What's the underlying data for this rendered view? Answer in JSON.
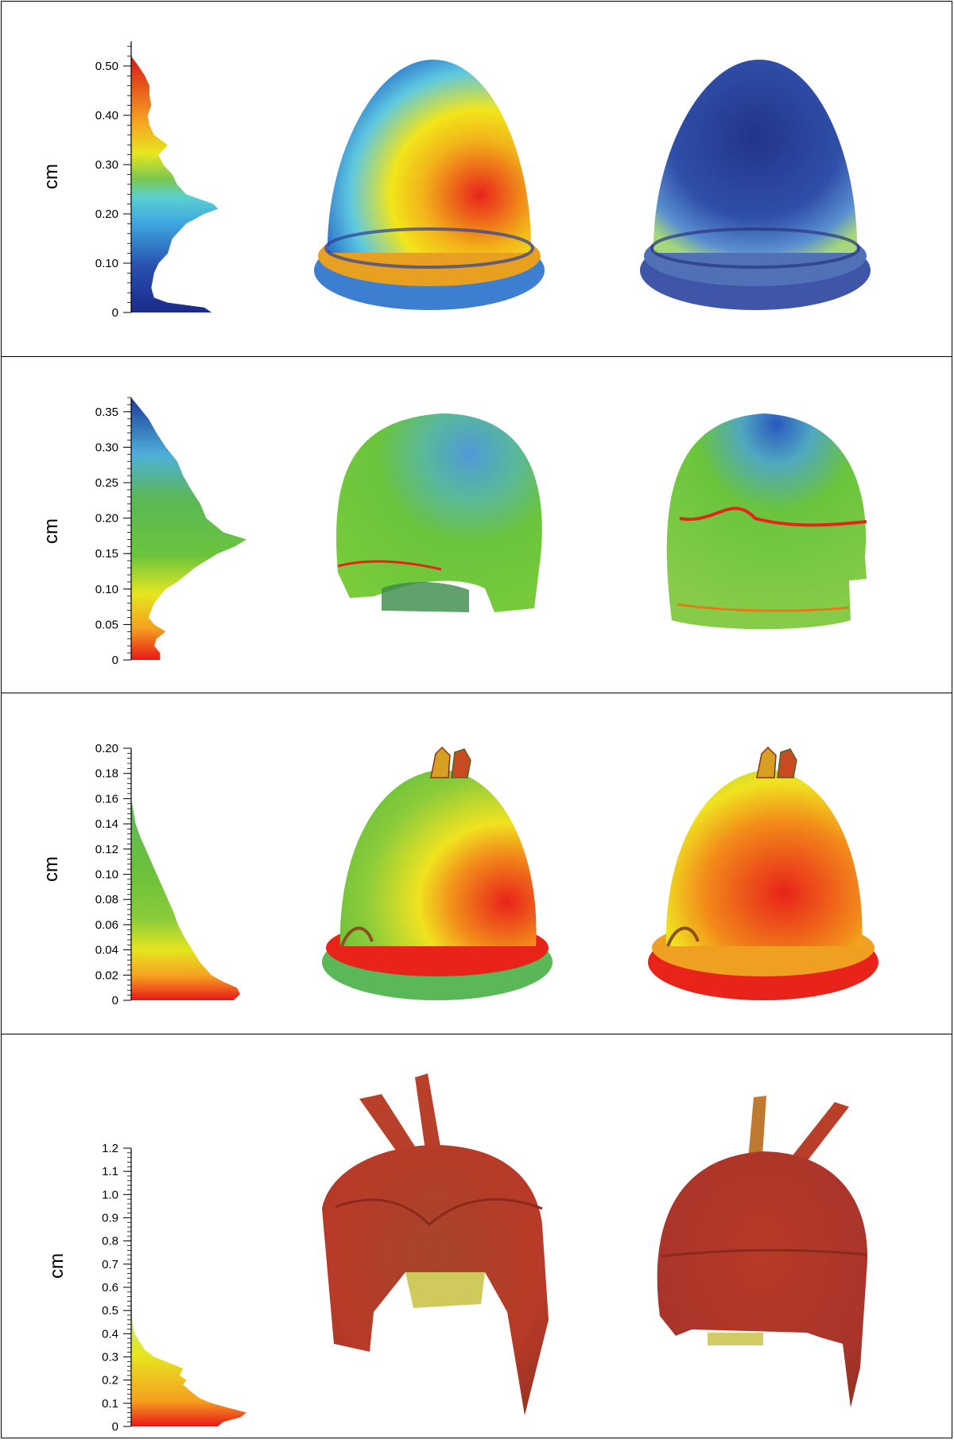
{
  "chart_data": [
    {
      "type": "histogram",
      "ylabel": "cm",
      "ticks": [
        "0",
        "0.10",
        "0.20",
        "0.30",
        "0.40",
        "0.50"
      ],
      "tick_values": [
        0,
        0.1,
        0.2,
        0.3,
        0.4,
        0.5
      ],
      "ylim": [
        0,
        0.55
      ],
      "colormap": "rainbow, low values dark blue, high values red",
      "distribution": {
        "y": [
          0.0,
          0.01,
          0.02,
          0.03,
          0.05,
          0.08,
          0.1,
          0.12,
          0.15,
          0.18,
          0.2,
          0.21,
          0.22,
          0.24,
          0.26,
          0.28,
          0.3,
          0.32,
          0.34,
          0.36,
          0.38,
          0.4,
          0.42,
          0.44,
          0.46,
          0.48,
          0.5,
          0.52
        ],
        "count": [
          0.88,
          0.8,
          0.4,
          0.25,
          0.22,
          0.25,
          0.3,
          0.4,
          0.45,
          0.6,
          0.8,
          0.95,
          0.9,
          0.6,
          0.5,
          0.45,
          0.35,
          0.3,
          0.4,
          0.25,
          0.2,
          0.18,
          0.22,
          0.2,
          0.2,
          0.15,
          0.08,
          0.0
        ]
      }
    },
    {
      "type": "histogram",
      "ylabel": "cm",
      "ticks": [
        "0",
        "0.05",
        "0.10",
        "0.15",
        "0.20",
        "0.25",
        "0.30",
        "0.35"
      ],
      "tick_values": [
        0,
        0.05,
        0.1,
        0.15,
        0.2,
        0.25,
        0.3,
        0.35
      ],
      "ylim": [
        0,
        0.37
      ],
      "colormap": "low values red, high values blue",
      "distribution": {
        "y": [
          0.0,
          0.01,
          0.02,
          0.03,
          0.04,
          0.05,
          0.06,
          0.08,
          0.1,
          0.11,
          0.13,
          0.15,
          0.16,
          0.17,
          0.18,
          0.2,
          0.22,
          0.24,
          0.26,
          0.28,
          0.3,
          0.32,
          0.34,
          0.36,
          0.37
        ],
        "count": [
          0.25,
          0.25,
          0.2,
          0.22,
          0.3,
          0.2,
          0.15,
          0.2,
          0.3,
          0.4,
          0.55,
          0.75,
          0.9,
          1.0,
          0.8,
          0.65,
          0.6,
          0.52,
          0.45,
          0.4,
          0.3,
          0.22,
          0.15,
          0.05,
          0.0
        ]
      }
    },
    {
      "type": "histogram",
      "ylabel": "cm",
      "ticks": [
        "0",
        "0.02",
        "0.04",
        "0.06",
        "0.08",
        "0.10",
        "0.12",
        "0.14",
        "0.16",
        "0.18",
        "0.20"
      ],
      "tick_values": [
        0,
        0.02,
        0.04,
        0.06,
        0.08,
        0.1,
        0.12,
        0.14,
        0.16,
        0.18,
        0.2
      ],
      "ylim": [
        0,
        0.2
      ],
      "colormap": "low values red, high values green",
      "distribution": {
        "y": [
          0.0,
          0.005,
          0.01,
          0.015,
          0.02,
          0.03,
          0.04,
          0.05,
          0.06,
          0.07,
          0.08,
          0.09,
          0.1,
          0.11,
          0.12,
          0.13,
          0.14,
          0.15,
          0.16
        ],
        "count": [
          0.92,
          0.98,
          0.95,
          0.82,
          0.72,
          0.62,
          0.55,
          0.48,
          0.42,
          0.38,
          0.33,
          0.28,
          0.23,
          0.18,
          0.13,
          0.08,
          0.04,
          0.02,
          0.0
        ]
      }
    },
    {
      "type": "histogram",
      "ylabel": "cm",
      "ticks": [
        "0",
        "0.1",
        "0.2",
        "0.3",
        "0.4",
        "0.5",
        "0.6",
        "0.7",
        "0.8",
        "0.9",
        "1.0",
        "1.1",
        "1.2"
      ],
      "tick_values": [
        0,
        0.1,
        0.2,
        0.3,
        0.4,
        0.5,
        0.6,
        0.7,
        0.8,
        0.9,
        1.0,
        1.1,
        1.2
      ],
      "ylim": [
        0,
        1.2
      ],
      "colormap": "low values red, high values yellow-green",
      "distribution": {
        "y": [
          0.0,
          0.02,
          0.04,
          0.06,
          0.08,
          0.1,
          0.12,
          0.15,
          0.18,
          0.2,
          0.22,
          0.25,
          0.28,
          0.3,
          0.33,
          0.36,
          0.4,
          0.45,
          0.55,
          0.7,
          0.9,
          1.1
        ],
        "count": [
          0.75,
          0.8,
          0.95,
          1.0,
          0.85,
          0.7,
          0.6,
          0.52,
          0.45,
          0.48,
          0.42,
          0.45,
          0.3,
          0.2,
          0.12,
          0.08,
          0.03,
          0.01,
          0.005,
          0.003,
          0.002,
          0.0
        ]
      }
    }
  ],
  "helmet_colors": [
    {
      "left": [
        "#3fa8e0",
        "#f2e51a",
        "#e8231a",
        "#1f3b8f"
      ],
      "right": [
        "#2a3f9a",
        "#5a8fd0",
        "#e4e85a"
      ]
    },
    {
      "left": [
        "#6ac43c",
        "#4fb0d8",
        "#e82a1a"
      ],
      "right": [
        "#6ac43c",
        "#3a6fc8",
        "#e82a1a"
      ]
    },
    {
      "left": [
        "#6fc23a",
        "#f0e320",
        "#e8231a"
      ],
      "right": [
        "#f0e320",
        "#e8231a",
        "#6fc23a"
      ]
    },
    {
      "left": [
        "#b83a28",
        "#8e7a2a",
        "#d8cf48"
      ],
      "right": [
        "#b83a28",
        "#8e7a2a",
        "#d8cf48"
      ]
    }
  ]
}
